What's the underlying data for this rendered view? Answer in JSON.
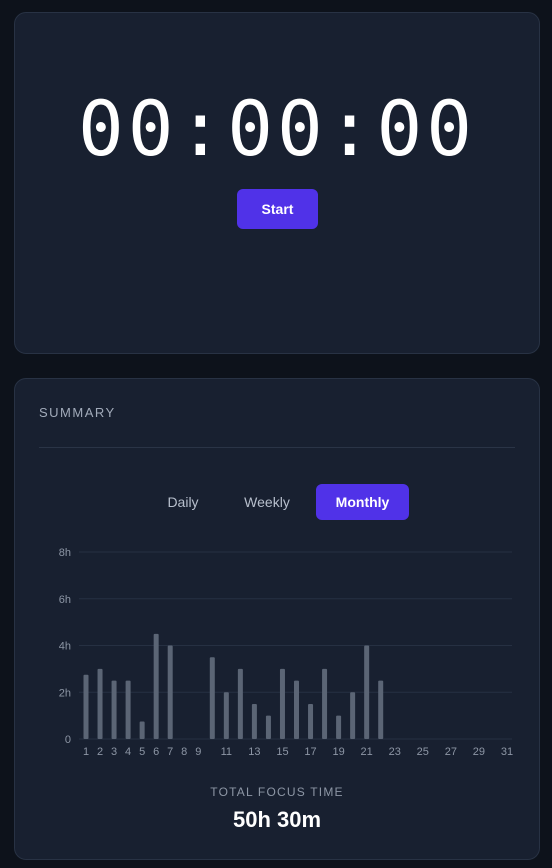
{
  "timer": {
    "display": "00:00:00",
    "start_label": "Start"
  },
  "summary": {
    "title": "SUMMARY",
    "tabs": [
      {
        "label": "Daily",
        "active": false
      },
      {
        "label": "Weekly",
        "active": false
      },
      {
        "label": "Monthly",
        "active": true
      }
    ],
    "total_label": "TOTAL FOCUS TIME",
    "total_value": "50h 30m"
  },
  "colors": {
    "accent": "#5032e8",
    "bar": "#5b6575",
    "grid": "#263042",
    "axis_text": "#8d96a5"
  },
  "chart_data": {
    "type": "bar",
    "x": [
      1,
      2,
      3,
      4,
      5,
      6,
      7,
      8,
      9,
      10,
      11,
      12,
      13,
      14,
      15,
      16,
      17,
      18,
      19,
      20,
      21,
      22,
      23,
      24,
      25,
      26,
      27,
      28,
      29,
      30,
      31
    ],
    "x_tick_labels": [
      "1",
      "2",
      "3",
      "4",
      "5",
      "6",
      "7",
      "8",
      "9",
      "11",
      "13",
      "15",
      "17",
      "19",
      "21",
      "23",
      "25",
      "27",
      "29",
      "31"
    ],
    "values": [
      2.75,
      3,
      2.5,
      2.5,
      0.75,
      4.5,
      4,
      0,
      0,
      3.5,
      2,
      3,
      1.5,
      1,
      3,
      2.5,
      1.5,
      3,
      1,
      2,
      4,
      2.5,
      0,
      0,
      0,
      0,
      0,
      0,
      0,
      0,
      0
    ],
    "y_ticks": [
      0,
      2,
      4,
      6,
      8
    ],
    "y_tick_labels": [
      "0",
      "2h",
      "4h",
      "6h",
      "8h"
    ],
    "ylim": [
      0,
      8
    ],
    "grid": true
  }
}
